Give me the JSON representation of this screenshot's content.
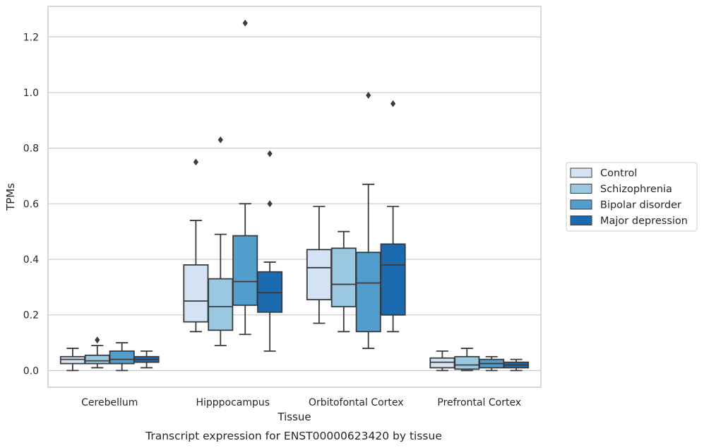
{
  "caption": "Transcript expression for ENST00000623420 by tissue",
  "chart_data": {
    "type": "boxplot",
    "title": "",
    "xlabel": "Tissue",
    "ylabel": "TPMs",
    "ylim": [
      -0.06,
      1.31
    ],
    "yticks": [
      "0.0",
      "0.2",
      "0.4",
      "0.6",
      "0.8",
      "1.0",
      "1.2"
    ],
    "ytick_values": [
      0.0,
      0.2,
      0.4,
      0.6,
      0.8,
      1.0,
      1.2
    ],
    "grid": true,
    "legend_position": "right",
    "categories": [
      "Cerebellum",
      "Hipppocampus",
      "Orbitofontal Cortex",
      "Prefrontal Cortex"
    ],
    "series": [
      {
        "name": "Control",
        "color": "#d3e3f3",
        "boxes": [
          {
            "whislo": 0.0,
            "q1": 0.025,
            "median": 0.04,
            "q3": 0.05,
            "whishi": 0.08,
            "fliers": []
          },
          {
            "whislo": 0.14,
            "q1": 0.175,
            "median": 0.25,
            "q3": 0.38,
            "whishi": 0.54,
            "fliers": [
              0.75
            ]
          },
          {
            "whislo": 0.17,
            "q1": 0.255,
            "median": 0.37,
            "q3": 0.435,
            "whishi": 0.59,
            "fliers": []
          },
          {
            "whislo": 0.0,
            "q1": 0.01,
            "median": 0.03,
            "q3": 0.045,
            "whishi": 0.07,
            "fliers": []
          }
        ]
      },
      {
        "name": "Schizophrenia",
        "color": "#9ac8e0",
        "boxes": [
          {
            "whislo": 0.01,
            "q1": 0.025,
            "median": 0.035,
            "q3": 0.055,
            "whishi": 0.09,
            "fliers": [
              0.11
            ]
          },
          {
            "whislo": 0.09,
            "q1": 0.145,
            "median": 0.23,
            "q3": 0.33,
            "whishi": 0.49,
            "fliers": [
              0.83
            ]
          },
          {
            "whislo": 0.14,
            "q1": 0.23,
            "median": 0.31,
            "q3": 0.44,
            "whishi": 0.5,
            "fliers": []
          },
          {
            "whislo": 0.0,
            "q1": 0.005,
            "median": 0.02,
            "q3": 0.05,
            "whishi": 0.08,
            "fliers": []
          }
        ]
      },
      {
        "name": "Bipolar disorder",
        "color": "#529dcc",
        "boxes": [
          {
            "whislo": 0.0,
            "q1": 0.025,
            "median": 0.04,
            "q3": 0.07,
            "whishi": 0.1,
            "fliers": []
          },
          {
            "whislo": 0.13,
            "q1": 0.235,
            "median": 0.32,
            "q3": 0.485,
            "whishi": 0.6,
            "fliers": [
              1.25
            ]
          },
          {
            "whislo": 0.08,
            "q1": 0.14,
            "median": 0.315,
            "q3": 0.425,
            "whishi": 0.67,
            "fliers": [
              0.99
            ]
          },
          {
            "whislo": 0.0,
            "q1": 0.01,
            "median": 0.025,
            "q3": 0.04,
            "whishi": 0.05,
            "fliers": []
          }
        ]
      },
      {
        "name": "Major depression",
        "color": "#1c6aaf",
        "boxes": [
          {
            "whislo": 0.01,
            "q1": 0.03,
            "median": 0.04,
            "q3": 0.05,
            "whishi": 0.07,
            "fliers": []
          },
          {
            "whislo": 0.07,
            "q1": 0.21,
            "median": 0.28,
            "q3": 0.355,
            "whishi": 0.39,
            "fliers": [
              0.6,
              0.78
            ]
          },
          {
            "whislo": 0.14,
            "q1": 0.2,
            "median": 0.38,
            "q3": 0.455,
            "whishi": 0.59,
            "fliers": [
              0.96
            ]
          },
          {
            "whislo": 0.0,
            "q1": 0.01,
            "median": 0.02,
            "q3": 0.03,
            "whishi": 0.04,
            "fliers": []
          }
        ]
      }
    ]
  }
}
